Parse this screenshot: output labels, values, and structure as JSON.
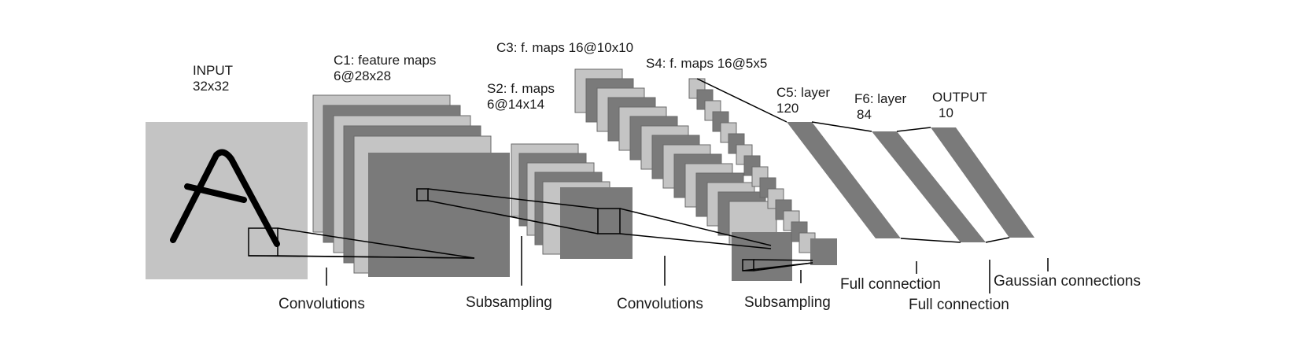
{
  "diagram": {
    "layers": {
      "input": {
        "name": "INPUT",
        "size": "32x32"
      },
      "c1": {
        "name": "C1: feature maps",
        "size": "6@28x28"
      },
      "s2": {
        "name": "S2: f. maps",
        "size": "6@14x14"
      },
      "c3": {
        "name": "C3: f. maps 16@10x10"
      },
      "s4": {
        "name": "S4: f. maps 16@5x5"
      },
      "c5": {
        "name": "C5: layer",
        "size": "120"
      },
      "f6": {
        "name": "F6: layer",
        "size": "84"
      },
      "output": {
        "name": "OUTPUT",
        "size": "10"
      }
    },
    "operations": {
      "conv1": "Convolutions",
      "sub1": "Subsampling",
      "conv2": "Convolutions",
      "sub2": "Subsampling",
      "full1": "Full connection",
      "full2": "Full connection",
      "gaussian": "Gaussian connections"
    },
    "colors": {
      "light_map": "#c4c4c4",
      "dark_map": "#7a7a7a",
      "map_edge": "#6a6a6a",
      "ink": "#000000"
    }
  }
}
